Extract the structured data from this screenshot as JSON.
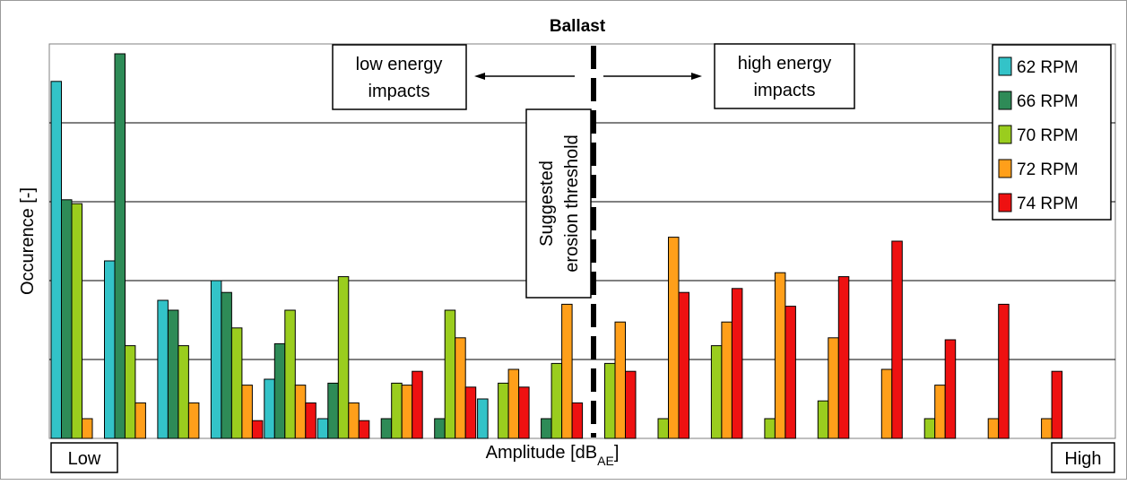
{
  "chart_data": {
    "type": "bar",
    "title": "Ballast",
    "ylabel": "Occurence [-]",
    "xlabel_main": "Amplitude [dB",
    "xlabel_sub": "AE",
    "xlabel_close": "]",
    "x_low_label": "Low",
    "x_high_label": "High",
    "ylim": [
      0,
      10
    ],
    "grid": true,
    "legend_position": "top-right",
    "annotations": {
      "low_energy_line1": "low energy",
      "low_energy_line2": "impacts",
      "high_energy_line1": "high energy",
      "high_energy_line2": "impacts",
      "threshold_line1": "Suggested",
      "threshold_line2": "erosion threshold"
    },
    "series": [
      {
        "name": "62 RPM",
        "color": "#33c3c8",
        "values": [
          9.05,
          4.5,
          3.5,
          4.0,
          1.5,
          0.5,
          0,
          0,
          1.0,
          0,
          0,
          0,
          0,
          0,
          0,
          0,
          0,
          0,
          0,
          0
        ]
      },
      {
        "name": "66 RPM",
        "color": "#2e8b57",
        "values": [
          6.05,
          9.75,
          3.25,
          3.7,
          2.4,
          1.4,
          0.5,
          0.5,
          0,
          0.5,
          0,
          0,
          0,
          0,
          0,
          0,
          0,
          0,
          0,
          0
        ]
      },
      {
        "name": "70 RPM",
        "color": "#9acd1e",
        "values": [
          5.95,
          2.35,
          2.35,
          2.8,
          3.25,
          4.1,
          1.4,
          3.25,
          1.4,
          1.9,
          1.9,
          0.5,
          2.35,
          0.5,
          0.95,
          0,
          0.5,
          0,
          0,
          0
        ]
      },
      {
        "name": "72 RPM",
        "color": "#ff9f1a",
        "values": [
          0.5,
          0.9,
          0.9,
          1.35,
          1.35,
          0.9,
          1.35,
          2.55,
          1.75,
          3.4,
          2.95,
          5.1,
          2.95,
          4.2,
          2.55,
          1.75,
          1.35,
          0.5,
          0.5,
          0
        ]
      },
      {
        "name": "74 RPM",
        "color": "#ee1111",
        "values": [
          0,
          0,
          0,
          0.45,
          0.9,
          0.45,
          1.7,
          1.3,
          1.3,
          0.9,
          1.7,
          3.7,
          3.8,
          3.35,
          4.1,
          5.0,
          2.5,
          3.4,
          1.7,
          0
        ]
      }
    ]
  }
}
